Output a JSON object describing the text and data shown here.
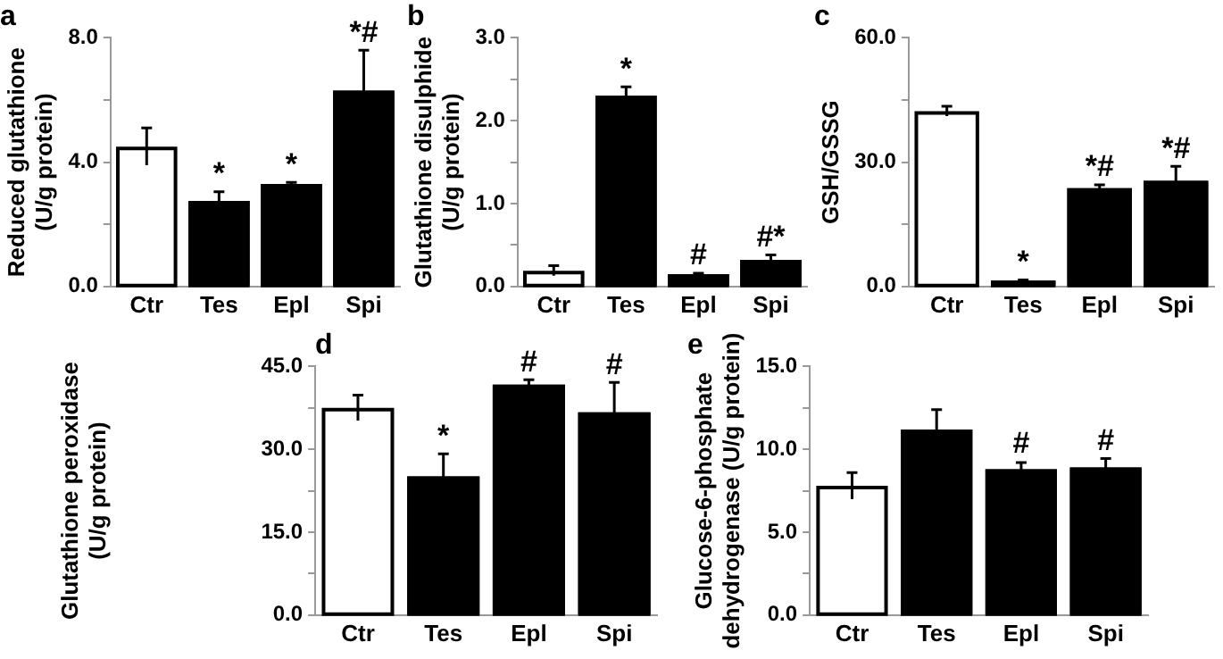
{
  "chart_data": [
    {
      "type": "bar",
      "title": "a",
      "ylabel": "Reduced glutathione\n(U/g protein)",
      "categories": [
        "Ctr",
        "Tes",
        "Epl",
        "Spi"
      ],
      "values": [
        4.5,
        2.75,
        3.3,
        6.3
      ],
      "errors": [
        0.6,
        0.3,
        0.05,
        1.3
      ],
      "colors": [
        "#ffffff",
        "#000000",
        "#000000",
        "#000000"
      ],
      "ylim": [
        0,
        8
      ],
      "yticks": [
        {
          "value": 0,
          "label": "0.0"
        },
        {
          "value": 2,
          "label": null
        },
        {
          "value": 4,
          "label": "4.0"
        },
        {
          "value": 6,
          "label": null
        },
        {
          "value": 8,
          "label": "8.0"
        }
      ],
      "grid": false,
      "legend": false,
      "annotations": [
        {
          "text": "*",
          "x": "Tes",
          "y": 3.05
        },
        {
          "text": "*",
          "x": "Epl",
          "y": 3.35
        },
        {
          "text": "*#",
          "x": "Spi",
          "y": 7.6
        }
      ]
    },
    {
      "type": "bar",
      "title": "b",
      "ylabel": "Glutathione disulphide\n(U/g protein)",
      "categories": [
        "Ctr",
        "Tes",
        "Epl",
        "Spi"
      ],
      "values": [
        0.19,
        2.3,
        0.15,
        0.32
      ],
      "errors": [
        0.06,
        0.11,
        0.01,
        0.06
      ],
      "colors": [
        "#ffffff",
        "#000000",
        "#000000",
        "#000000"
      ],
      "ylim": [
        0,
        3
      ],
      "yticks": [
        {
          "value": 0,
          "label": "0.0"
        },
        {
          "value": 0.5,
          "label": null
        },
        {
          "value": 1,
          "label": "1.0"
        },
        {
          "value": 1.5,
          "label": null
        },
        {
          "value": 2,
          "label": "2.0"
        },
        {
          "value": 2.5,
          "label": null
        },
        {
          "value": 3,
          "label": "3.0"
        }
      ],
      "grid": false,
      "legend": false,
      "annotations": [
        {
          "text": "*",
          "x": "Tes",
          "y": 2.41
        },
        {
          "text": "#",
          "x": "Epl",
          "y": 0.16
        },
        {
          "text": "#*",
          "x": "Spi",
          "y": 0.38
        }
      ]
    },
    {
      "type": "bar",
      "title": "c",
      "ylabel": "GSH/GSSG",
      "categories": [
        "Ctr",
        "Tes",
        "Epl",
        "Spi"
      ],
      "values": [
        42.3,
        1.4,
        23.7,
        25.5
      ],
      "errors": [
        1.2,
        0.2,
        0.8,
        3.5
      ],
      "colors": [
        "#ffffff",
        "#000000",
        "#000000",
        "#000000"
      ],
      "ylim": [
        0,
        60
      ],
      "yticks": [
        {
          "value": 0,
          "label": "0.0"
        },
        {
          "value": 15,
          "label": null
        },
        {
          "value": 30,
          "label": "30.0"
        },
        {
          "value": 45,
          "label": null
        },
        {
          "value": 60,
          "label": "60.0"
        }
      ],
      "grid": false,
      "legend": false,
      "annotations": [
        {
          "text": "*",
          "x": "Tes",
          "y": 1.6
        },
        {
          "text": "*#",
          "x": "Epl",
          "y": 24.5
        },
        {
          "text": "*#",
          "x": "Spi",
          "y": 29
        }
      ]
    },
    {
      "type": "bar",
      "title": "d",
      "ylabel": "Glutathione peroxidase\n(U/g protein)",
      "categories": [
        "Ctr",
        "Tes",
        "Epl",
        "Spi"
      ],
      "values": [
        37.5,
        25.1,
        41.7,
        36.7
      ],
      "errors": [
        2.3,
        4.1,
        0.9,
        5.4
      ],
      "colors": [
        "#ffffff",
        "#000000",
        "#000000",
        "#000000"
      ],
      "ylim": [
        0,
        45
      ],
      "yticks": [
        {
          "value": 0,
          "label": "0.0"
        },
        {
          "value": 7.5,
          "label": null
        },
        {
          "value": 15,
          "label": "15.0"
        },
        {
          "value": 22.5,
          "label": null
        },
        {
          "value": 30,
          "label": "30.0"
        },
        {
          "value": 37.5,
          "label": null
        },
        {
          "value": 45,
          "label": "45.0"
        }
      ],
      "grid": false,
      "legend": false,
      "annotations": [
        {
          "text": "*",
          "x": "Tes",
          "y": 29.2
        },
        {
          "text": "#",
          "x": "Epl",
          "y": 42.6
        },
        {
          "text": "#",
          "x": "Spi",
          "y": 42.1
        }
      ]
    },
    {
      "type": "bar",
      "title": "e",
      "ylabel": "Glucose-6-phosphate\ndehydrogenase (U/g protein)",
      "categories": [
        "Ctr",
        "Tes",
        "Epl",
        "Spi"
      ],
      "values": [
        7.8,
        11.2,
        8.8,
        8.9
      ],
      "errors": [
        0.8,
        1.2,
        0.4,
        0.55
      ],
      "colors": [
        "#ffffff",
        "#000000",
        "#000000",
        "#000000"
      ],
      "ylim": [
        0,
        15
      ],
      "yticks": [
        {
          "value": 0,
          "label": "0.0"
        },
        {
          "value": 2.5,
          "label": null
        },
        {
          "value": 5,
          "label": "5.0"
        },
        {
          "value": 7.5,
          "label": null
        },
        {
          "value": 10,
          "label": "10.0"
        },
        {
          "value": 12.5,
          "label": null
        },
        {
          "value": 15,
          "label": "15.0"
        }
      ],
      "grid": false,
      "legend": false,
      "annotations": [
        {
          "text": "#",
          "x": "Epl",
          "y": 9.25
        },
        {
          "text": "#",
          "x": "Spi",
          "y": 9.45
        }
      ]
    }
  ]
}
